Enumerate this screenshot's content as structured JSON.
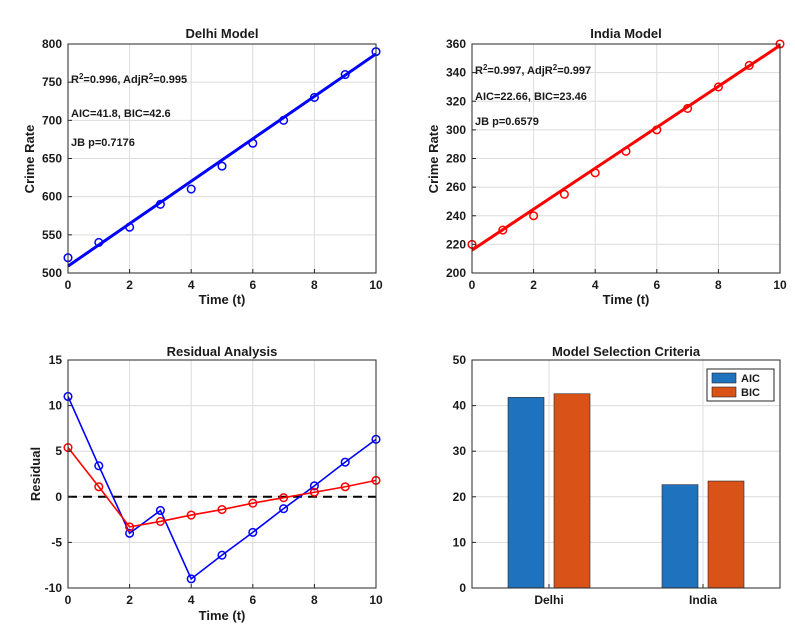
{
  "chart_data": [
    {
      "type": "scatter",
      "title": "Delhi Model",
      "xlabel": "Time (t)",
      "ylabel": "Crime Rate",
      "xlim": [
        0,
        10
      ],
      "ylim": [
        500,
        800
      ],
      "xticks": [
        "0",
        "2",
        "4",
        "6",
        "8",
        "10"
      ],
      "yticks": [
        "500",
        "550",
        "600",
        "650",
        "700",
        "750",
        "800"
      ],
      "grid": true,
      "color": "#0000FF",
      "points": {
        "x": [
          0,
          1,
          2,
          3,
          4,
          5,
          6,
          7,
          8,
          9,
          10
        ],
        "y": [
          520,
          540,
          560,
          590,
          610,
          640,
          670,
          700,
          730,
          760,
          790
        ]
      },
      "fit_line": {
        "x": [
          0,
          10
        ],
        "y": [
          509,
          787
        ]
      },
      "annotations": [
        "AIC=41.8, BIC=42.6",
        "JB p=0.7176"
      ],
      "r2_annotation": {
        "r2_prefix": "R",
        "r2_value": "=0.996, AdjR",
        "adj_value": "=0.995"
      }
    },
    {
      "type": "scatter",
      "title": "India Model",
      "xlabel": "Time (t)",
      "ylabel": "Crime Rate",
      "xlim": [
        0,
        10
      ],
      "ylim": [
        200,
        360
      ],
      "xticks": [
        "0",
        "2",
        "4",
        "6",
        "8",
        "10"
      ],
      "yticks": [
        "200",
        "220",
        "240",
        "260",
        "280",
        "300",
        "320",
        "340",
        "360"
      ],
      "grid": true,
      "color": "#FF0000",
      "points": {
        "x": [
          0,
          1,
          2,
          3,
          4,
          5,
          6,
          7,
          8,
          9,
          10
        ],
        "y": [
          220,
          230,
          240,
          255,
          270,
          285,
          300,
          315,
          330,
          345,
          360
        ]
      },
      "fit_line": {
        "x": [
          0,
          10
        ],
        "y": [
          216,
          359
        ]
      },
      "annotations": [
        "AIC=22.66, BIC=23.46",
        "JB p=0.6579"
      ],
      "r2_annotation": {
        "r2_prefix": "R",
        "r2_value": "=0.997, AdjR",
        "adj_value": "=0.997"
      }
    },
    {
      "type": "line",
      "title": "Residual Analysis",
      "xlabel": "Time (t)",
      "ylabel": "Residual",
      "xlim": [
        0,
        10
      ],
      "ylim": [
        -10,
        15
      ],
      "xticks": [
        "0",
        "2",
        "4",
        "6",
        "8",
        "10"
      ],
      "yticks": [
        "-10",
        "-5",
        "0",
        "5",
        "10",
        "15"
      ],
      "grid": true,
      "zero_line": true,
      "x": [
        0,
        1,
        2,
        3,
        4,
        5,
        6,
        7,
        8,
        9,
        10
      ],
      "series": [
        {
          "color": "#0000FF",
          "values": [
            11,
            3.4,
            -4,
            -1.5,
            -9,
            -6.4,
            -3.9,
            -1.3,
            1.2,
            3.8,
            6.3
          ]
        },
        {
          "color": "#FF0000",
          "values": [
            5.4,
            1.1,
            -3.3,
            -2.7,
            -2,
            -1.4,
            -0.7,
            -0.1,
            0.5,
            1.1,
            1.8
          ]
        }
      ]
    },
    {
      "type": "bar",
      "title": "Model Selection Criteria",
      "categories": [
        "Delhi",
        "India"
      ],
      "ylim": [
        0,
        50
      ],
      "yticks": [
        "0",
        "10",
        "20",
        "30",
        "40",
        "50"
      ],
      "grid": true,
      "legend_position": "top-right",
      "series": [
        {
          "name": "AIC",
          "color": "#1F72BE",
          "values": [
            41.8,
            22.66
          ]
        },
        {
          "name": "BIC",
          "color": "#D95319",
          "values": [
            42.6,
            23.46
          ]
        }
      ]
    }
  ]
}
